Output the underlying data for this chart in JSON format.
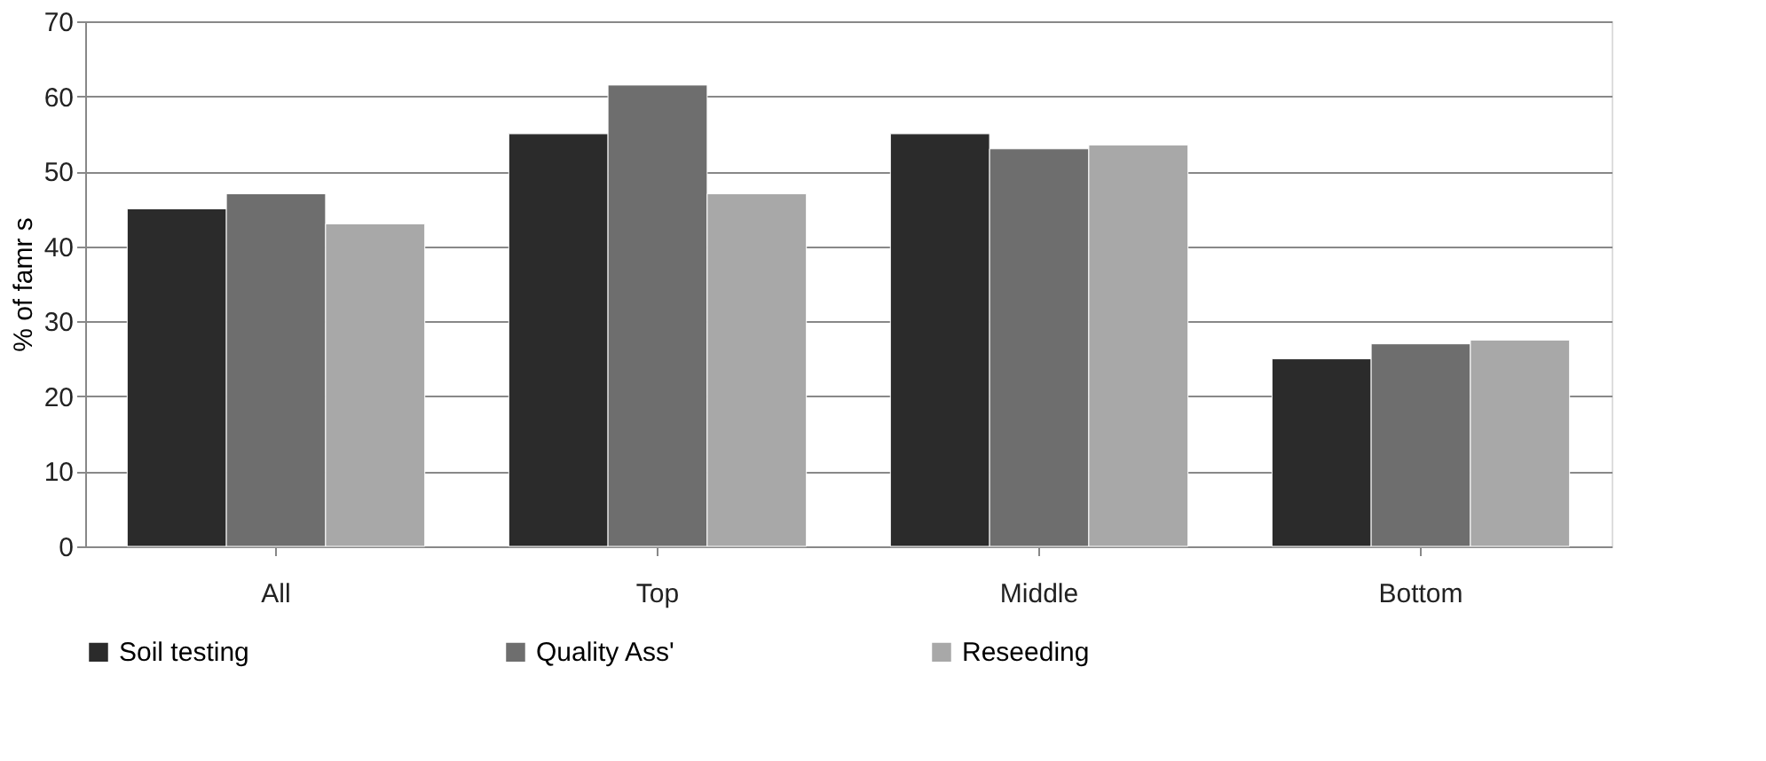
{
  "chart_data": {
    "type": "bar",
    "ylabel": "% of famr s",
    "categories": [
      "All",
      "Top",
      "Middle",
      "Bottom"
    ],
    "series": [
      {
        "name": "Soil testing",
        "color": "#2b2b2b",
        "values": [
          45,
          55,
          55,
          25
        ]
      },
      {
        "name": "Quality Ass'",
        "color": "#6e6e6e",
        "values": [
          47,
          61.5,
          53,
          27
        ]
      },
      {
        "name": "Reseeding",
        "color": "#a8a8a8",
        "values": [
          43,
          47,
          53.5,
          27.5
        ]
      }
    ],
    "ylim": [
      0,
      70
    ],
    "yticks": [
      0,
      10,
      20,
      30,
      40,
      50,
      60,
      70
    ],
    "grid": "y",
    "legend": "bottom"
  }
}
